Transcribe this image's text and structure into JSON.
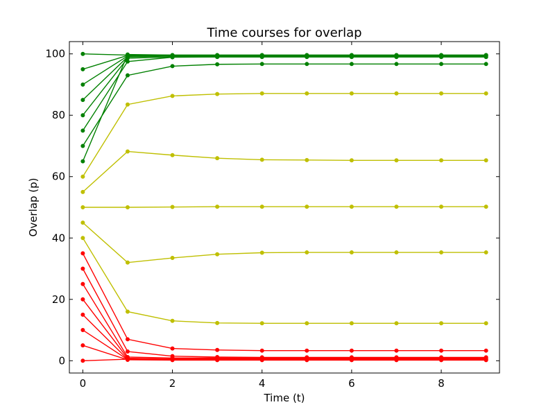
{
  "chart_data": {
    "type": "line",
    "title": "Time courses for overlap",
    "xlabel": "Time (t)",
    "ylabel": "Overlap (p)",
    "xlim": [
      -0.3,
      9.3
    ],
    "ylim": [
      -4,
      104
    ],
    "xticks": [
      0,
      2,
      4,
      6,
      8
    ],
    "yticks": [
      0,
      20,
      40,
      60,
      80,
      100
    ],
    "grid": false,
    "x": [
      0,
      1,
      2,
      3,
      4,
      5,
      6,
      7,
      8,
      9
    ],
    "series": [
      {
        "color": "#008000",
        "values": [
          100,
          99.6,
          99.6,
          99.6,
          99.6,
          99.6,
          99.6,
          99.6,
          99.6,
          99.6
        ]
      },
      {
        "color": "#008000",
        "values": [
          95,
          99.5,
          99.5,
          99.5,
          99.5,
          99.5,
          99.5,
          99.5,
          99.5,
          99.5
        ]
      },
      {
        "color": "#008000",
        "values": [
          90,
          99.3,
          99.4,
          99.4,
          99.4,
          99.4,
          99.4,
          99.4,
          99.4,
          99.4
        ]
      },
      {
        "color": "#008000",
        "values": [
          85,
          99.0,
          99.3,
          99.3,
          99.3,
          99.3,
          99.3,
          99.3,
          99.3,
          99.3
        ]
      },
      {
        "color": "#008000",
        "values": [
          80,
          98.6,
          99.0,
          99.0,
          99.0,
          99.0,
          99.0,
          99.0,
          99.0,
          99.0
        ]
      },
      {
        "color": "#008000",
        "values": [
          75,
          97.5,
          98.9,
          99.0,
          99.0,
          99.0,
          99.0,
          99.0,
          99.0,
          99.0
        ]
      },
      {
        "color": "#008000",
        "values": [
          70,
          93.0,
          96.0,
          96.6,
          96.7,
          96.7,
          96.7,
          96.7,
          96.7,
          96.7
        ]
      },
      {
        "color": "#008000",
        "values": [
          65,
          99.8,
          99.6,
          99.6,
          99.6,
          99.6,
          99.6,
          99.6,
          99.6,
          99.6
        ]
      },
      {
        "color": "#bfbf00",
        "values": [
          60,
          83.5,
          86.3,
          86.9,
          87.1,
          87.1,
          87.1,
          87.1,
          87.1,
          87.1
        ]
      },
      {
        "color": "#bfbf00",
        "values": [
          55,
          68.2,
          67.0,
          66.0,
          65.5,
          65.4,
          65.3,
          65.3,
          65.3,
          65.3
        ]
      },
      {
        "color": "#bfbf00",
        "values": [
          50,
          50.0,
          50.1,
          50.2,
          50.2,
          50.2,
          50.2,
          50.2,
          50.2,
          50.2
        ]
      },
      {
        "color": "#bfbf00",
        "values": [
          45,
          32.0,
          33.5,
          34.7,
          35.2,
          35.3,
          35.3,
          35.3,
          35.3,
          35.3
        ]
      },
      {
        "color": "#bfbf00",
        "values": [
          40,
          16.0,
          13.0,
          12.3,
          12.2,
          12.2,
          12.2,
          12.2,
          12.2,
          12.2
        ]
      },
      {
        "color": "#ff0000",
        "values": [
          35,
          7.0,
          4.0,
          3.5,
          3.3,
          3.3,
          3.3,
          3.3,
          3.3,
          3.3
        ]
      },
      {
        "color": "#ff0000",
        "values": [
          30,
          3.0,
          1.5,
          1.2,
          1.1,
          1.1,
          1.1,
          1.1,
          1.1,
          1.1
        ]
      },
      {
        "color": "#ff0000",
        "values": [
          25,
          1.2,
          0.9,
          0.9,
          0.9,
          0.9,
          0.9,
          0.9,
          0.9,
          0.9
        ]
      },
      {
        "color": "#ff0000",
        "values": [
          20,
          0.8,
          0.6,
          0.6,
          0.6,
          0.6,
          0.6,
          0.6,
          0.6,
          0.6
        ]
      },
      {
        "color": "#ff0000",
        "values": [
          15,
          0.5,
          0.4,
          0.4,
          0.4,
          0.4,
          0.4,
          0.4,
          0.4,
          0.4
        ]
      },
      {
        "color": "#ff0000",
        "values": [
          10,
          0.4,
          0.3,
          0.3,
          0.3,
          0.3,
          0.3,
          0.3,
          0.3,
          0.3
        ]
      },
      {
        "color": "#ff0000",
        "values": [
          5,
          0.3,
          0.2,
          0.2,
          0.2,
          0.2,
          0.2,
          0.2,
          0.2,
          0.2
        ]
      },
      {
        "color": "#ff0000",
        "values": [
          0,
          0.5,
          0.5,
          0.5,
          0.5,
          0.5,
          0.5,
          0.5,
          0.5,
          0.5
        ]
      }
    ]
  }
}
